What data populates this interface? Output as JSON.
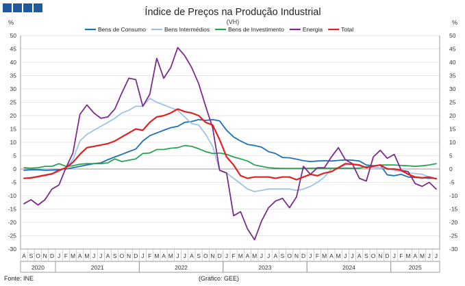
{
  "chart_data": {
    "type": "line",
    "title": "Índice de Preços na Produção Industrial",
    "subtitle": "(VH)",
    "y_unit_left": "%",
    "y_unit_right": "%",
    "ylim": [
      -30,
      50
    ],
    "y_ticks": [
      -30,
      -25,
      -20,
      -15,
      -10,
      -5,
      0,
      5,
      10,
      15,
      20,
      25,
      30,
      35,
      40,
      45,
      50
    ],
    "grid": true,
    "legend_position": "top",
    "months": [
      "A",
      "S",
      "O",
      "N",
      "D",
      "J",
      "F",
      "M",
      "A",
      "M",
      "J",
      "J",
      "A",
      "S",
      "O",
      "N",
      "D",
      "J",
      "F",
      "M",
      "A",
      "M",
      "J",
      "J",
      "A",
      "S",
      "O",
      "N",
      "D",
      "J",
      "F",
      "M",
      "A",
      "M",
      "J",
      "J",
      "A",
      "S",
      "O",
      "N",
      "D",
      "J",
      "F",
      "M",
      "A",
      "M",
      "J",
      "J",
      "A",
      "S",
      "O",
      "N",
      "D",
      "J",
      "F",
      "M",
      "A",
      "M",
      "J",
      "J"
    ],
    "years": [
      {
        "label": "2020",
        "start": 0,
        "end": 4
      },
      {
        "label": "2021",
        "start": 5,
        "end": 16
      },
      {
        "label": "2022",
        "start": 17,
        "end": 28
      },
      {
        "label": "2023",
        "start": 29,
        "end": 40
      },
      {
        "label": "2024",
        "start": 41,
        "end": 52
      },
      {
        "label": "2025",
        "start": 53,
        "end": 59
      }
    ],
    "series": [
      {
        "name": "Bens de Consumo",
        "color": "#1f6fb5",
        "values": [
          -0.5,
          -0.3,
          -0.3,
          -0.5,
          -0.4,
          -0.3,
          0,
          0.5,
          1,
          1.5,
          2,
          2.3,
          3.5,
          4.5,
          5.5,
          6.5,
          7.5,
          10.5,
          12.5,
          13.5,
          14.5,
          15.5,
          16,
          17.5,
          17.8,
          18.5,
          18.2,
          18.5,
          18,
          14.5,
          12,
          10.5,
          9.2,
          8.8,
          8.2,
          6.5,
          5.8,
          4.3,
          4.2,
          3.7,
          3.1,
          2.8,
          3.0,
          3.1,
          3.0,
          3.2,
          3.4,
          3.3,
          3.0,
          1.5,
          1.2,
          1.5,
          -2.2,
          -2.5,
          -2.0,
          -3.0,
          -3.2,
          -3.3,
          -3.5,
          -3.5
        ]
      },
      {
        "name": "Bens Intermédios",
        "color": "#9cc3e6",
        "values": [
          -3.5,
          -3.5,
          -3,
          -2.5,
          -2,
          -1,
          0.5,
          3.5,
          10.5,
          13,
          14.5,
          16,
          17.5,
          19,
          21,
          22,
          23.5,
          23.5,
          26.5,
          25,
          24,
          23,
          22,
          19.5,
          17,
          16.5,
          13,
          8.5,
          -0.5,
          -1.5,
          -3.5,
          -5.5,
          -7.5,
          -8.5,
          -8,
          -7.5,
          -7.5,
          -7.5,
          -7.5,
          -8,
          -7.5,
          -6.5,
          -5,
          -3,
          0,
          0.5,
          1.5,
          1.8,
          1.2,
          0.8,
          0.6,
          0.4,
          0.3,
          -0.5,
          -1,
          -1.5,
          -1.7,
          -2,
          -3,
          -3.7
        ]
      },
      {
        "name": "Bens de Investimento",
        "color": "#27a24f",
        "values": [
          0.5,
          0.3,
          0.5,
          1,
          1,
          2,
          1,
          1.2,
          1.8,
          2,
          2,
          2,
          2.3,
          3.8,
          2.8,
          3.3,
          3.8,
          5.8,
          6,
          7.3,
          7.3,
          7.8,
          8,
          8.8,
          8.5,
          7.6,
          6.5,
          5.8,
          6,
          5.5,
          4.5,
          3.8,
          3,
          1.5,
          1,
          0.5,
          0.3,
          0.2,
          0.2,
          0.2,
          0.2,
          0.3,
          0.3,
          0.3,
          0.3,
          0.3,
          0.3,
          0.3,
          0.3,
          0.8,
          1,
          1.5,
          1.5,
          1.5,
          1.3,
          1.2,
          1,
          1.2,
          1.5,
          2
        ]
      },
      {
        "name": "Energia",
        "color": "#7b2a8b",
        "values": [
          -13,
          -11.5,
          -13.5,
          -11.5,
          -7.5,
          -6,
          0.5,
          6,
          20.5,
          24,
          21,
          19,
          19.5,
          22.5,
          28.5,
          34,
          33.5,
          23.5,
          28,
          41.5,
          34,
          38,
          45.5,
          42.5,
          38,
          32,
          23.5,
          15.5,
          -0.5,
          -1.5,
          -17.5,
          -16,
          -22.5,
          -26.5,
          -19.5,
          -14.5,
          -12,
          -11,
          -14.5,
          -10.5,
          1,
          -2,
          0.5,
          0.5,
          4.5,
          8,
          3.5,
          2,
          -3.5,
          -4.5,
          4.5,
          7,
          4,
          5.5,
          -0.5,
          -1,
          -5.5,
          -6.5,
          -5,
          -7.5
        ]
      },
      {
        "name": "Total",
        "color": "#e02020",
        "values": [
          -3.5,
          -3.3,
          -2.8,
          -2.3,
          -1.8,
          -0.5,
          0.5,
          2.5,
          5.5,
          8,
          8.5,
          9,
          9.5,
          10.5,
          12,
          13.5,
          15,
          14.5,
          17.5,
          19.5,
          20,
          21,
          22.5,
          21.5,
          21,
          20,
          17.5,
          16.5,
          11,
          4.5,
          1.5,
          -2.5,
          -3.5,
          -3,
          -3,
          -3,
          -3.5,
          -3,
          -3,
          -4,
          -3,
          -2,
          -2.5,
          -1.5,
          -1,
          0.5,
          2,
          1.8,
          1.5,
          0.5,
          1,
          1.5,
          0,
          0,
          -0.5,
          -2,
          -3,
          -3.3,
          -3,
          -3.7
        ]
      }
    ],
    "source_left": "Fonte: INE",
    "source_center": "(Gráfico: GEE)"
  },
  "logo_color": "#1f5a9e"
}
